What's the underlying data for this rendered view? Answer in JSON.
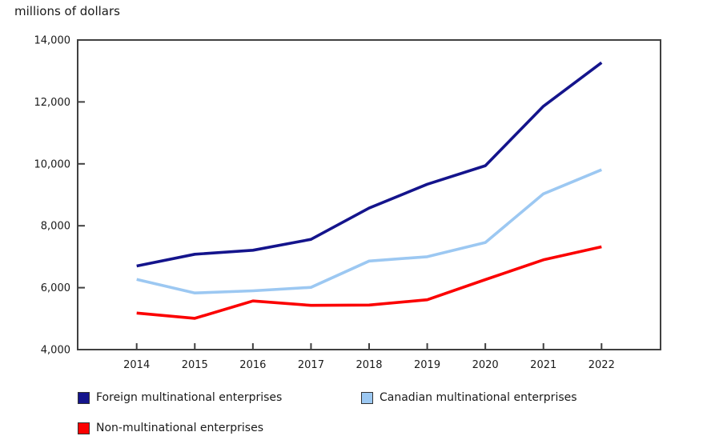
{
  "chart_data": {
    "type": "line",
    "title": "millions of dollars",
    "x": [
      2014,
      2015,
      2016,
      2017,
      2018,
      2019,
      2020,
      2021,
      2022
    ],
    "x_tick_labels": [
      "2014",
      "2015",
      "2016",
      "2017",
      "2018",
      "2019",
      "2020",
      "2021",
      "2022"
    ],
    "series": [
      {
        "name": "Foreign multinational enterprises",
        "color": "#14148c",
        "values": [
          6700,
          7080,
          7210,
          7560,
          8570,
          9340,
          9940,
          11860,
          13270
        ]
      },
      {
        "name": "Canadian multinational enterprises",
        "color": "#9cc8f2",
        "values": [
          6270,
          5830,
          5900,
          6010,
          6860,
          7000,
          7460,
          9030,
          9810
        ]
      },
      {
        "name": "Non-multinational enterprises",
        "color": "#fb0000",
        "values": [
          5180,
          5010,
          5570,
          5430,
          5440,
          5610,
          6260,
          6900,
          7320
        ]
      }
    ],
    "ylabel": "",
    "xlabel": "",
    "ylim": [
      4000,
      14000
    ],
    "y_tick_values": [
      14000,
      12000,
      10000,
      8000,
      6000,
      4000
    ],
    "y_tick_labels": [
      "14,000",
      "12,000",
      "10,000",
      "8,000",
      "6,000",
      "4,000"
    ],
    "grid": false,
    "legend_position": "bottom-left",
    "axis_color": "#404040",
    "text_color": "#1a1a1a"
  },
  "legend": {
    "items": [
      {
        "label": "Foreign multinational enterprises"
      },
      {
        "label": "Canadian multinational enterprises"
      },
      {
        "label": "Non-multinational enterprises"
      }
    ]
  }
}
